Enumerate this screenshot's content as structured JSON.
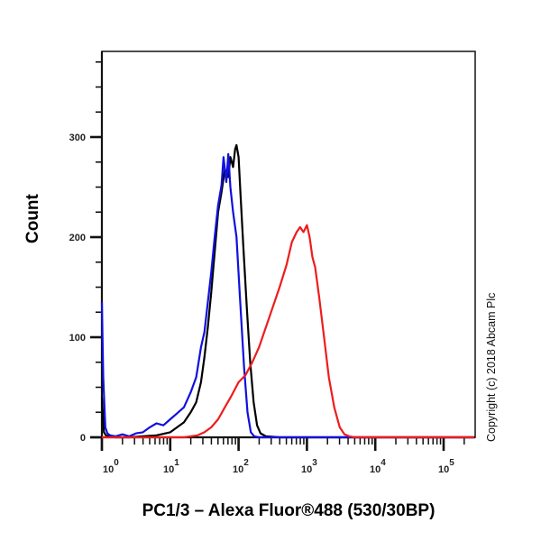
{
  "chart_data": {
    "type": "line",
    "subtype": "flow-cytometry-histogram",
    "title": "",
    "xlabel": "PC1/3 – Alexa Fluor®488 (530/30BP)",
    "ylabel": "Count",
    "xscale": "log",
    "xlim": [
      1,
      210000
    ],
    "ylim": [
      0,
      385
    ],
    "x_ticks": [
      {
        "base": "10",
        "exp": "0",
        "value": 1
      },
      {
        "base": "10",
        "exp": "1",
        "value": 10
      },
      {
        "base": "10",
        "exp": "2",
        "value": 100
      },
      {
        "base": "10",
        "exp": "3",
        "value": 1000
      },
      {
        "base": "10",
        "exp": "4",
        "value": 10000
      },
      {
        "base": "10",
        "exp": "5",
        "value": 100000
      }
    ],
    "y_ticks": [
      0,
      100,
      200,
      300
    ],
    "grid": false,
    "legend": null,
    "annotation": "Copyright (c) 2018 Abcam Plc",
    "series": [
      {
        "name": "black",
        "color": "#000000",
        "log10_x": [
          0,
          0.03,
          0.06,
          0.1,
          0.2,
          0.4,
          0.6,
          0.8,
          1.0,
          1.1,
          1.2,
          1.3,
          1.38,
          1.45,
          1.5,
          1.55,
          1.6,
          1.65,
          1.7,
          1.75,
          1.8,
          1.85,
          1.88,
          1.92,
          1.95,
          1.97,
          2.0,
          2.03,
          2.07,
          2.12,
          2.17,
          2.22,
          2.27,
          2.32,
          2.4,
          2.6,
          3.0,
          4.0,
          5.0,
          5.45
        ],
        "counts": [
          40,
          5,
          2,
          1,
          0,
          0,
          1,
          2,
          5,
          10,
          15,
          25,
          35,
          55,
          80,
          110,
          145,
          185,
          225,
          245,
          268,
          260,
          280,
          270,
          288,
          292,
          280,
          240,
          190,
          130,
          75,
          35,
          12,
          4,
          1,
          0,
          0,
          0,
          0,
          0
        ]
      },
      {
        "name": "blue",
        "color": "#1010e0",
        "log10_x": [
          0,
          0.02,
          0.05,
          0.08,
          0.12,
          0.2,
          0.3,
          0.4,
          0.5,
          0.6,
          0.7,
          0.8,
          0.9,
          1.0,
          1.1,
          1.2,
          1.3,
          1.38,
          1.45,
          1.5,
          1.55,
          1.6,
          1.65,
          1.7,
          1.75,
          1.78,
          1.82,
          1.85,
          1.88,
          1.92,
          1.97,
          2.02,
          2.08,
          2.13,
          2.18,
          2.23,
          2.3,
          2.5,
          5.45
        ],
        "counts": [
          135,
          60,
          10,
          4,
          2,
          1,
          3,
          1,
          4,
          5,
          10,
          14,
          12,
          18,
          24,
          30,
          45,
          60,
          90,
          105,
          135,
          165,
          200,
          232,
          252,
          280,
          255,
          283,
          250,
          225,
          200,
          140,
          70,
          25,
          5,
          1,
          0,
          0,
          0
        ]
      },
      {
        "name": "red",
        "color": "#ee1c1c",
        "log10_x": [
          0,
          1.2,
          1.4,
          1.5,
          1.6,
          1.7,
          1.8,
          1.9,
          2.0,
          2.1,
          2.2,
          2.3,
          2.4,
          2.5,
          2.6,
          2.7,
          2.78,
          2.85,
          2.9,
          2.95,
          3.0,
          3.04,
          3.08,
          3.12,
          3.18,
          3.25,
          3.32,
          3.4,
          3.48,
          3.55,
          3.62,
          3.7,
          4.0,
          5.45
        ],
        "counts": [
          0,
          0,
          2,
          5,
          10,
          18,
          30,
          42,
          55,
          62,
          75,
          90,
          110,
          130,
          150,
          172,
          195,
          205,
          210,
          205,
          212,
          200,
          180,
          170,
          140,
          100,
          60,
          30,
          10,
          3,
          1,
          0,
          0,
          0
        ]
      }
    ]
  },
  "axes": {
    "y_label": "Count",
    "x_label": "PC1/3 – Alexa Fluor®488 (530/30BP)",
    "y_tick_labels": [
      "0",
      "100",
      "200",
      "300"
    ],
    "x_tick_bases": [
      "10",
      "10",
      "10",
      "10",
      "10",
      "10"
    ],
    "x_tick_exps": [
      "0",
      "1",
      "2",
      "3",
      "4",
      "5"
    ]
  },
  "copyright": "Copyright (c) 2018 Abcam Plc"
}
